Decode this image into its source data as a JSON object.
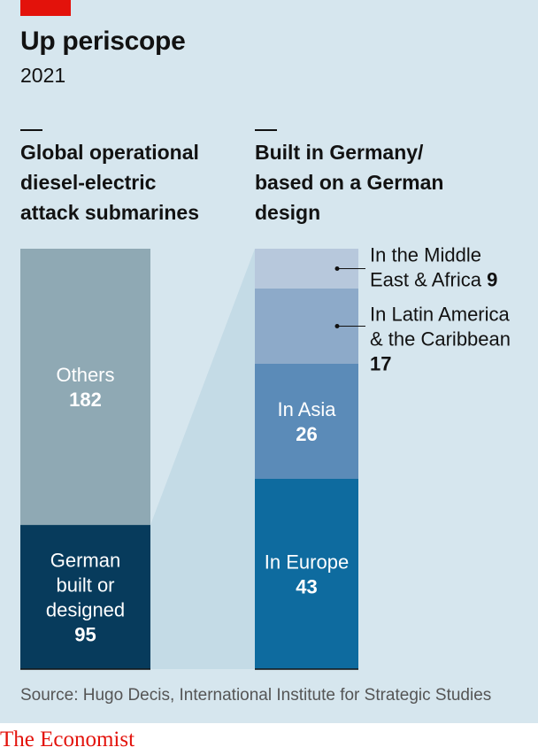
{
  "header": {
    "title": "Up periscope",
    "subtitle": "2021"
  },
  "panels": {
    "left_heading": [
      "Global operational",
      "diesel-electric",
      "attack submarines"
    ],
    "right_heading": [
      "Built in Germany/",
      "based on a German",
      "design"
    ]
  },
  "source": "Source: Hugo Decis, International Institute for Strategic Studies",
  "logo": "The Economist",
  "colors": {
    "background": "#d6e6ee",
    "others": "#8fa9b4",
    "german": "#073b5c",
    "europe": "#0e6b9f",
    "asia": "#5b8bb8",
    "latin_america": "#8daac9",
    "middle_east": "#b7c8dc",
    "connector": "#c4dbe6",
    "accent_red": "#e3120b"
  },
  "chart_data": [
    {
      "type": "bar",
      "stacked": true,
      "title": "Global operational diesel-electric attack submarines",
      "segments": [
        {
          "label": [
            "German",
            "built or",
            "designed"
          ],
          "value": 95
        },
        {
          "label": [
            "Others"
          ],
          "value": 182
        }
      ]
    },
    {
      "type": "bar",
      "stacked": true,
      "title": "Built in Germany/ based on a German design",
      "segments": [
        {
          "label": [
            "In Europe"
          ],
          "value": 43
        },
        {
          "label": [
            "In Asia"
          ],
          "value": 26
        },
        {
          "label": [
            "In Latin America",
            "& the Caribbean"
          ],
          "value": 17,
          "label_outside": true
        },
        {
          "label": [
            "In the Middle",
            "East & Africa"
          ],
          "value": 9,
          "label_outside": true
        }
      ]
    }
  ]
}
